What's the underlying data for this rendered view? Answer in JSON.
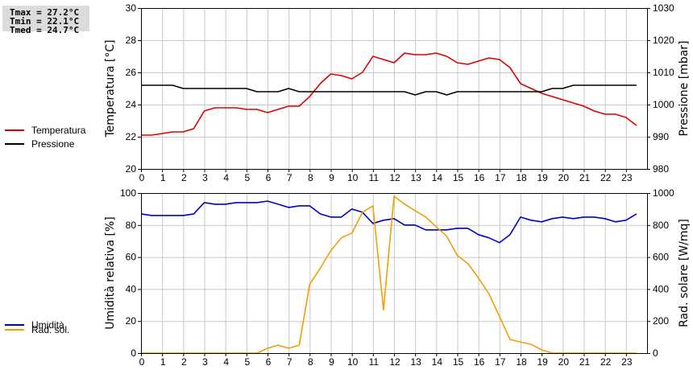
{
  "stats": {
    "tmax": "Tmax = 27.2°C",
    "tmin": "Tmin = 22.1°C",
    "tmed": "Tmed = 24.7°C"
  },
  "colors": {
    "temperature": "#dd0000",
    "pressure": "#000000",
    "humidity": "#0000cc",
    "radiation": "#f0a000",
    "grid": "#c8c8c8"
  },
  "chart_data": [
    {
      "type": "line",
      "xlim": [
        0,
        24
      ],
      "x_ticks": [
        0,
        1,
        2,
        3,
        4,
        5,
        6,
        7,
        8,
        9,
        10,
        11,
        12,
        13,
        14,
        15,
        16,
        17,
        18,
        19,
        20,
        21,
        22,
        23
      ],
      "ylabel": "Temperatura [°C]",
      "ylim": [
        20,
        30
      ],
      "y_ticks": [
        20,
        22,
        24,
        26,
        28,
        30
      ],
      "ylabel_right": "Pressione [mbar]",
      "ylim_right": [
        980,
        1030
      ],
      "y_ticks_right": [
        980,
        990,
        1000,
        1010,
        1020,
        1030
      ],
      "grid": true,
      "legend": "left",
      "series": [
        {
          "name": "Temperatura",
          "axis": "left",
          "x": [
            0,
            0.5,
            1,
            1.5,
            2,
            2.5,
            3,
            3.5,
            4,
            4.5,
            5,
            5.5,
            6,
            6.5,
            7,
            7.5,
            8,
            8.5,
            9,
            9.5,
            10,
            10.5,
            11,
            11.5,
            12,
            12.5,
            13,
            13.5,
            14,
            14.5,
            15,
            15.5,
            16,
            16.5,
            17,
            17.5,
            18,
            18.5,
            19,
            19.5,
            20,
            20.5,
            21,
            21.5,
            22,
            22.5,
            23,
            23.5
          ],
          "values": [
            22.1,
            22.1,
            22.2,
            22.3,
            22.3,
            22.5,
            23.6,
            23.8,
            23.8,
            23.8,
            23.7,
            23.7,
            23.5,
            23.7,
            23.9,
            23.9,
            24.5,
            25.3,
            25.9,
            25.8,
            25.6,
            26.0,
            27.0,
            26.8,
            26.6,
            27.2,
            27.1,
            27.1,
            27.2,
            27.0,
            26.6,
            26.5,
            26.7,
            26.9,
            26.8,
            26.3,
            25.3,
            25.0,
            24.7,
            24.5,
            24.3,
            24.1,
            23.9,
            23.6,
            23.4,
            23.4,
            23.2,
            22.7
          ]
        },
        {
          "name": "Pressione",
          "axis": "right",
          "x": [
            0,
            1,
            1.5,
            2,
            2.5,
            3,
            4,
            5,
            5.5,
            6,
            6.5,
            7,
            7.5,
            8,
            9,
            10,
            11,
            12,
            12.5,
            13,
            13.5,
            14,
            14.5,
            15,
            16,
            17,
            18,
            18.5,
            19,
            19.5,
            20,
            20.5,
            21,
            22,
            23,
            23.5
          ],
          "values": [
            1006,
            1006,
            1006,
            1005,
            1005,
            1005,
            1005,
            1005,
            1004,
            1004,
            1004,
            1005,
            1004,
            1004,
            1004,
            1004,
            1004,
            1004,
            1004,
            1003,
            1004,
            1004,
            1003,
            1004,
            1004,
            1004,
            1004,
            1004,
            1004,
            1005,
            1005,
            1006,
            1006,
            1006,
            1006,
            1006
          ]
        }
      ]
    },
    {
      "type": "line",
      "xlim": [
        0,
        24
      ],
      "x_ticks": [
        0,
        1,
        2,
        3,
        4,
        5,
        6,
        7,
        8,
        9,
        10,
        11,
        12,
        13,
        14,
        15,
        16,
        17,
        18,
        19,
        20,
        21,
        22,
        23
      ],
      "ylabel": "Umidità relativa [%]",
      "ylim": [
        0,
        100
      ],
      "y_ticks": [
        0,
        20,
        40,
        60,
        80,
        100
      ],
      "ylabel_right": "Rad. solare [W/mq]",
      "ylim_right": [
        0,
        1000
      ],
      "y_ticks_right": [
        0,
        200,
        400,
        600,
        800,
        1000
      ],
      "grid": true,
      "legend": "left",
      "series": [
        {
          "name": "Umidità",
          "axis": "left",
          "x": [
            0,
            0.5,
            1,
            1.5,
            2,
            2.5,
            3,
            3.5,
            4,
            4.5,
            5,
            5.5,
            6,
            6.5,
            7,
            7.5,
            8,
            8.5,
            9,
            9.5,
            10,
            10.5,
            11,
            11.5,
            12,
            12.5,
            13,
            13.5,
            14,
            14.5,
            15,
            15.5,
            16,
            16.5,
            17,
            17.5,
            18,
            18.5,
            19,
            19.5,
            20,
            20.5,
            21,
            21.5,
            22,
            22.5,
            23,
            23.5
          ],
          "values": [
            87,
            86,
            86,
            86,
            86,
            87,
            94,
            93,
            93,
            94,
            94,
            94,
            95,
            93,
            91,
            92,
            92,
            87,
            85,
            85,
            90,
            88,
            81,
            83,
            84,
            80,
            80,
            77,
            77,
            77,
            78,
            78,
            74,
            72,
            69,
            74,
            85,
            83,
            82,
            84,
            85,
            84,
            85,
            85,
            84,
            82,
            83,
            87
          ]
        },
        {
          "name": "Rad. sol.",
          "axis": "right",
          "x": [
            0,
            1,
            2,
            3,
            4,
            5,
            5.5,
            6,
            6.5,
            7,
            7.5,
            8,
            8.5,
            9,
            9.5,
            10,
            10.5,
            11,
            11.5,
            12,
            12.5,
            13,
            13.5,
            14,
            14.5,
            15,
            15.5,
            16,
            16.5,
            17,
            17.5,
            18,
            18.5,
            19,
            19.5,
            20,
            21,
            22,
            23,
            23.5
          ],
          "values": [
            0,
            0,
            0,
            0,
            0,
            0,
            0,
            30,
            50,
            30,
            50,
            430,
            530,
            640,
            720,
            750,
            880,
            920,
            270,
            980,
            930,
            890,
            850,
            790,
            730,
            610,
            560,
            470,
            370,
            230,
            85,
            70,
            55,
            20,
            0,
            0,
            0,
            0,
            0,
            0
          ]
        }
      ]
    }
  ]
}
